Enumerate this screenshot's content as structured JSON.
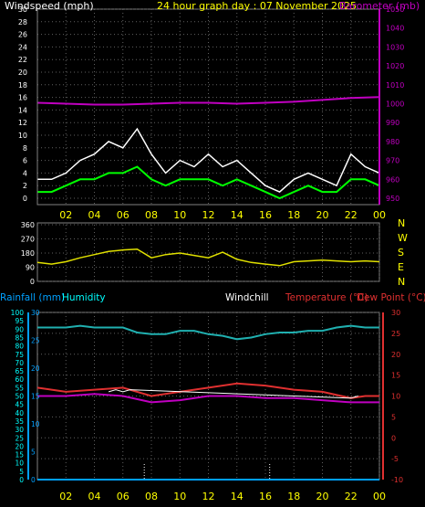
{
  "header": {
    "wind_title": "Windspeed (mph)",
    "graph_title": "24 hour graph day : 07 November 2025",
    "baro_title": "Barometer (mb)"
  },
  "colors": {
    "wind_gust": "#ffffff",
    "wind_avg": "#00ff00",
    "barometer": "#c000c0",
    "direction": "#e0e000",
    "humidity": "#20b0b0",
    "temperature": "#e03030",
    "dewpoint": "#c000c0",
    "windchill": "#ffffff",
    "rain": "#00a0ff",
    "yellow": "#ffff00",
    "cyan": "#00ffff",
    "grid": "#606060",
    "axis_text": "#ffffff"
  },
  "bottom_labels": {
    "rainfall": "Rainfall (mm)",
    "humidity": "Humidity",
    "windchill": "Windchill",
    "temperature": "Temperature (°C)",
    "dewpoint": "Dew Point (°C)"
  },
  "x_tick_labels": [
    "02",
    "04",
    "06",
    "08",
    "10",
    "12",
    "14",
    "16",
    "18",
    "20",
    "22",
    "00"
  ],
  "compass_labels": [
    "N",
    "W",
    "S",
    "E",
    "N"
  ],
  "chart_data": [
    {
      "type": "line",
      "title": "24 hour graph day : 07 November 2025",
      "x_ticks": [
        "02",
        "04",
        "06",
        "08",
        "10",
        "12",
        "14",
        "16",
        "18",
        "20",
        "22",
        "00"
      ],
      "y_left": {
        "label": "Windspeed (mph)",
        "range": [
          0,
          30
        ],
        "ticks": [
          0,
          2,
          4,
          6,
          8,
          10,
          12,
          14,
          16,
          18,
          20,
          22,
          24,
          26,
          28,
          30
        ]
      },
      "y_right": {
        "label": "Barometer (mb)",
        "range": [
          950,
          1050
        ],
        "ticks": [
          950,
          960,
          970,
          980,
          990,
          1000,
          1010,
          1020,
          1030,
          1040,
          1050
        ]
      },
      "series": [
        {
          "axis": "y_left",
          "hours": [
            0,
            1,
            2,
            3,
            4,
            5,
            6,
            7,
            8,
            9,
            10,
            11,
            12,
            13,
            14,
            15,
            16,
            17,
            18,
            19,
            20,
            21,
            22,
            23,
            24
          ],
          "values": [
            3,
            3,
            4,
            6,
            7,
            9,
            8,
            11,
            7,
            4,
            6,
            5,
            7,
            5,
            6,
            4,
            2,
            1,
            3,
            4,
            3,
            2,
            7,
            5,
            4
          ]
        },
        {
          "axis": "y_left",
          "hours": [
            0,
            1,
            2,
            3,
            4,
            5,
            6,
            7,
            8,
            9,
            10,
            11,
            12,
            13,
            14,
            15,
            16,
            17,
            18,
            19,
            20,
            21,
            22,
            23,
            24
          ],
          "values": [
            1,
            1,
            2,
            3,
            3,
            4,
            4,
            5,
            3,
            2,
            3,
            3,
            3,
            2,
            3,
            2,
            1,
            0,
            1,
            2,
            1,
            1,
            3,
            3,
            2
          ]
        },
        {
          "axis": "y_right",
          "hours": [
            0,
            2,
            4,
            6,
            8,
            10,
            12,
            14,
            16,
            18,
            20,
            22,
            24
          ],
          "values": [
            1000.5,
            1000,
            999.5,
            999.5,
            1000,
            1000.5,
            1000.5,
            1000,
            1000.5,
            1001,
            1002,
            1003,
            1003.5
          ]
        }
      ]
    },
    {
      "type": "line",
      "x_ticks": [
        "02",
        "04",
        "06",
        "08",
        "10",
        "12",
        "14",
        "16",
        "18",
        "20",
        "22",
        "00"
      ],
      "y": {
        "range": [
          0,
          360
        ],
        "ticks": [
          0,
          90,
          180,
          270,
          360
        ]
      },
      "y_right_labels": [
        "N",
        "W",
        "S",
        "E",
        "N"
      ],
      "series": [
        {
          "hours": [
            0,
            1,
            2,
            3,
            4,
            5,
            6,
            7,
            8,
            9,
            10,
            11,
            12,
            13,
            14,
            15,
            16,
            17,
            18,
            19,
            20,
            21,
            22,
            23,
            24
          ],
          "values": [
            120,
            110,
            125,
            150,
            170,
            190,
            200,
            205,
            150,
            170,
            180,
            165,
            150,
            185,
            140,
            120,
            110,
            100,
            125,
            130,
            135,
            130,
            125,
            130,
            125
          ]
        }
      ]
    },
    {
      "type": "line",
      "x_ticks": [
        "02",
        "04",
        "06",
        "08",
        "10",
        "12",
        "14",
        "16",
        "18",
        "20",
        "22",
        "00"
      ],
      "y_left": {
        "label": "Humidity",
        "range": [
          0,
          100
        ],
        "ticks": [
          0,
          5,
          10,
          15,
          20,
          25,
          30,
          35,
          40,
          45,
          50,
          55,
          60,
          65,
          70,
          75,
          80,
          85,
          90,
          95,
          100
        ]
      },
      "y_rain": {
        "label": "Rainfall (mm)",
        "range": [
          0,
          30
        ],
        "ticks": [
          0,
          5,
          10,
          15,
          20,
          25,
          30
        ]
      },
      "y_right": {
        "label": "Temperature (°C)",
        "range": [
          -10,
          30
        ],
        "ticks": [
          -10,
          -5,
          0,
          5,
          10,
          15,
          20,
          25,
          30
        ]
      },
      "series": [
        {
          "axis": "y_left",
          "hours": [
            0,
            2,
            3,
            4,
            6,
            7,
            8,
            9,
            10,
            11,
            12,
            13,
            14,
            15,
            16,
            17,
            18,
            19,
            20,
            21,
            22,
            23,
            24
          ],
          "values": [
            91,
            91,
            92,
            91,
            91,
            88,
            87,
            87,
            89,
            89,
            87,
            86,
            84,
            85,
            87,
            88,
            88,
            89,
            89,
            91,
            92,
            91,
            91
          ]
        },
        {
          "axis": "y_right",
          "hours": [
            0,
            2,
            4,
            6,
            8,
            10,
            12,
            14,
            16,
            18,
            20,
            22,
            23,
            24
          ],
          "values": [
            12,
            11,
            11.5,
            12,
            10,
            11,
            12,
            13,
            12.5,
            11.5,
            11,
            9.5,
            10,
            10
          ]
        },
        {
          "axis": "y_right",
          "hours": [
            0,
            2,
            4,
            6,
            8,
            10,
            12,
            14,
            16,
            18,
            20,
            22,
            23,
            24
          ],
          "values": [
            10,
            10,
            10.5,
            10,
            8.5,
            9,
            10,
            10,
            9.5,
            9.5,
            9,
            8.5,
            8.5,
            8.5
          ]
        },
        {
          "axis": "y_right",
          "hours": [
            5,
            5.5,
            6,
            6.5,
            22,
            22.5
          ],
          "values": [
            11,
            11.5,
            11,
            11.5,
            9.5,
            10
          ]
        },
        {
          "axis": "y_rain",
          "hours": [
            0,
            24
          ],
          "values": [
            0,
            0
          ]
        }
      ]
    }
  ]
}
